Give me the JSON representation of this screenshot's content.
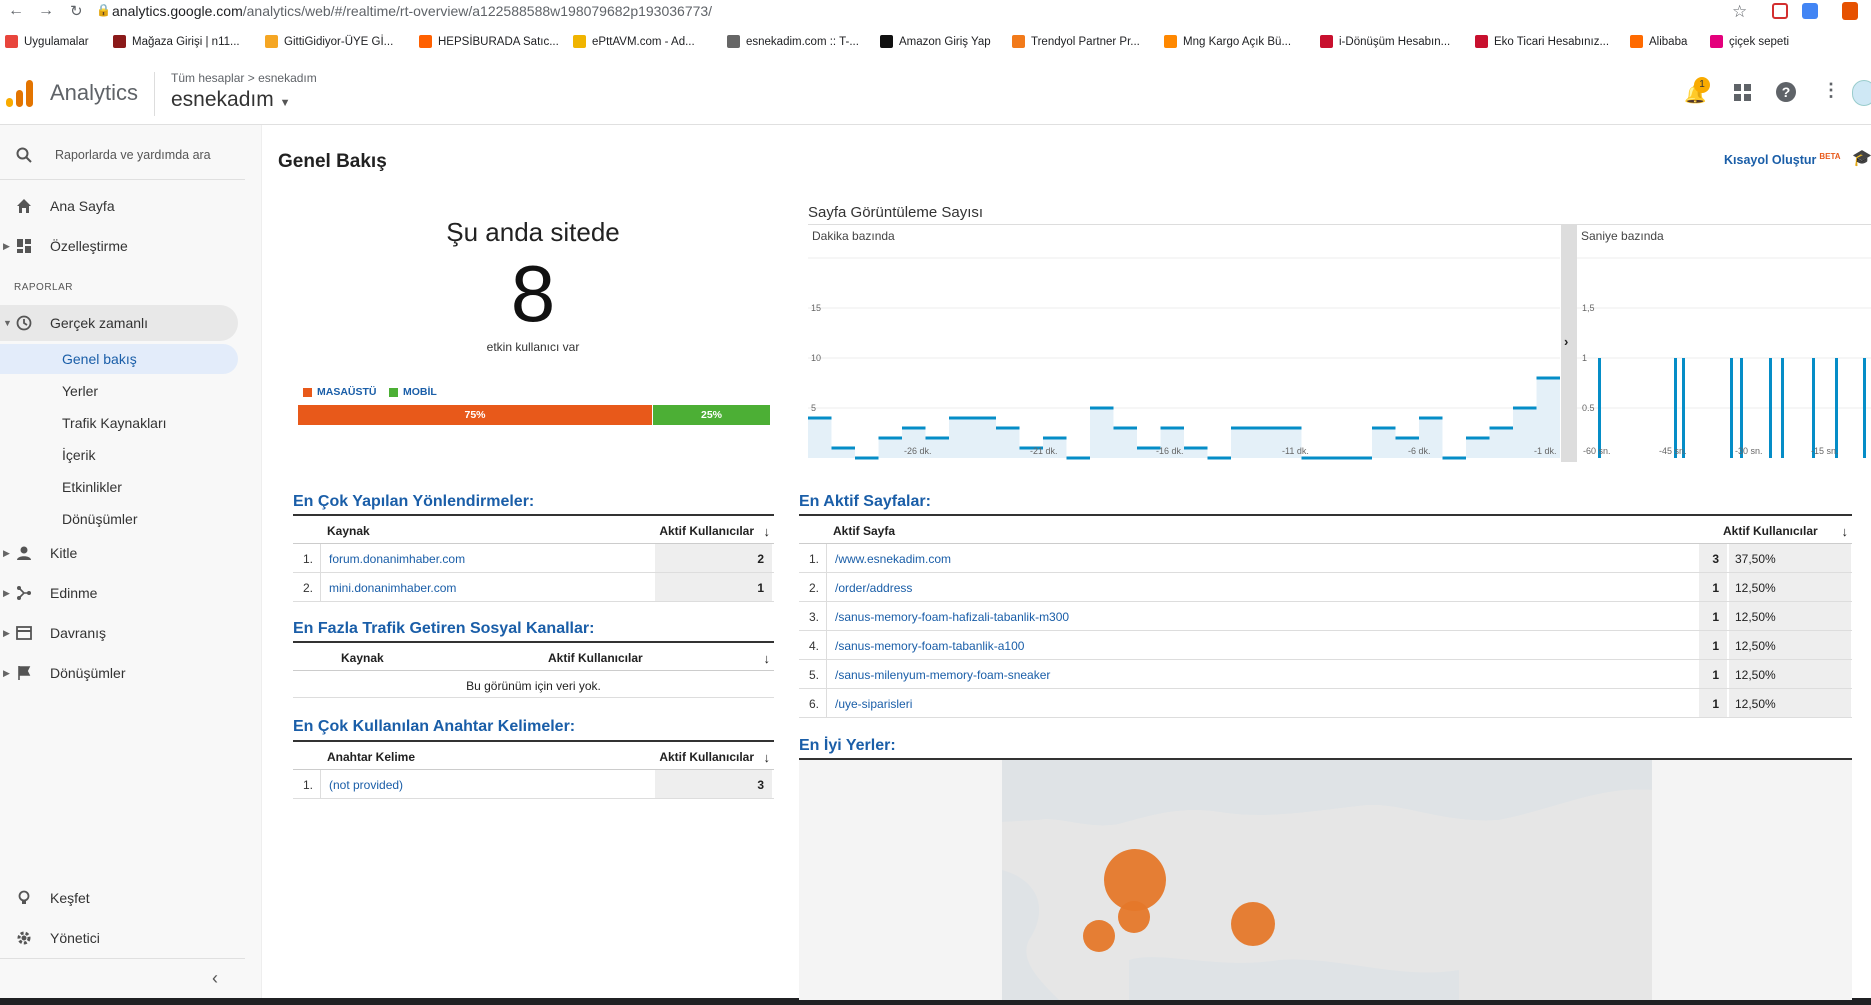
{
  "browser": {
    "url_host": "analytics.google.com",
    "url_path": "/analytics/web/#/realtime/rt-overview/a122588588w198079682p193036773/",
    "bookmarks": [
      {
        "label": "Uygulamalar",
        "icon": "apps-grid-icon",
        "color": "#e8453c"
      },
      {
        "label": "Mağaza Girişi | n11...",
        "icon": "n11-icon",
        "color": "#8b1a1a"
      },
      {
        "label": "GittiGidiyor-ÜYE Gİ...",
        "icon": "gittigidiyor-icon",
        "color": "#f5a623"
      },
      {
        "label": "HEPSİBURADA Satıc...",
        "icon": "hepsiburada-icon",
        "color": "#ff6000"
      },
      {
        "label": "ePttAVM.com - Ad...",
        "icon": "epttavm-icon",
        "color": "#f0b400"
      },
      {
        "label": "esnekadim.com :: T-...",
        "icon": "globe-icon",
        "color": "#666666"
      },
      {
        "label": "Amazon Giriş Yap",
        "icon": "amazon-icon",
        "color": "#111111"
      },
      {
        "label": "Trendyol Partner Pr...",
        "icon": "trendyol-icon",
        "color": "#f27a1a"
      },
      {
        "label": "Mng Kargo Açık Bü...",
        "icon": "mng-icon",
        "color": "#ff8800"
      },
      {
        "label": "i-Dönüşüm Hesabın...",
        "icon": "idonusum-icon",
        "color": "#c8102e"
      },
      {
        "label": "Eko Ticari Hesabınız...",
        "icon": "ekoticari-icon",
        "color": "#c8102e"
      },
      {
        "label": "Alibaba",
        "icon": "alibaba-icon",
        "color": "#ff6a00"
      },
      {
        "label": "çiçek sepeti",
        "icon": "ciceksepeti-icon",
        "color": "#e4007c"
      }
    ]
  },
  "header": {
    "app_name": "Analytics",
    "breadcrumb_all": "Tüm hesaplar",
    "breadcrumb_account": "esnekadım",
    "property": "esnekadım",
    "notification_count": "1"
  },
  "sidebar": {
    "search_placeholder": "Raporlarda ve yardımda ara",
    "home": "Ana Sayfa",
    "customize": "Özelleştirme",
    "reports_heading": "RAPORLAR",
    "realtime": "Gerçek zamanlı",
    "realtime_sub": [
      "Genel bakış",
      "Yerler",
      "Trafik Kaynakları",
      "İçerik",
      "Etkinlikler",
      "Dönüşümler"
    ],
    "audience": "Kitle",
    "acquisition": "Edinme",
    "behavior": "Davranış",
    "conversions": "Dönüşümler",
    "discover": "Keşfet",
    "admin": "Yönetici"
  },
  "page": {
    "title": "Genel Bakış",
    "shortcut": "Kısayol Oluştur",
    "beta": "BETA"
  },
  "active_users": {
    "heading": "Şu anda sitede",
    "count": "8",
    "caption": "etkin kullanıcı var",
    "desktop_label": "MASAÜSTÜ",
    "mobile_label": "MOBİL",
    "desktop_pct": "75%",
    "mobile_pct": "25%",
    "desktop_color": "#e8591a",
    "mobile_color": "#4caf35"
  },
  "chart_data": [
    {
      "type": "bar",
      "title": "Sayfa Görüntüleme Sayısı",
      "subtitle": "Dakika bazında",
      "x_labels": [
        "-26 dk.",
        "-21 dk.",
        "-16 dk.",
        "-11 dk.",
        "-6 dk.",
        "-1 dk."
      ],
      "y_ticks": [
        "5",
        "10",
        "15"
      ],
      "ylim": [
        0,
        20
      ],
      "values": [
        4,
        1,
        0,
        2,
        3,
        2,
        4,
        4,
        3,
        1,
        2,
        0,
        5,
        3,
        1,
        3,
        1,
        0,
        3,
        3,
        3,
        0,
        0,
        0,
        3,
        2,
        4,
        0,
        2,
        3,
        5,
        8
      ]
    },
    {
      "type": "bar",
      "subtitle": "Saniye bazında",
      "x_labels": [
        "-60 sn.",
        "-45 sn.",
        "-30 sn.",
        "-15 sn."
      ],
      "y_ticks": [
        "0.5",
        "1",
        "1,5"
      ],
      "ylim": [
        0,
        2
      ],
      "values": [
        1,
        1,
        1,
        1,
        1,
        1,
        1,
        1,
        1,
        1
      ]
    }
  ],
  "referrals": {
    "title": "En Çok Yapılan Yönlendirmeler:",
    "col1": "Kaynak",
    "col2": "Aktif Kullanıcılar",
    "rows": [
      {
        "n": "1.",
        "source": "forum.donanimhaber.com",
        "users": "2"
      },
      {
        "n": "2.",
        "source": "mini.donanimhaber.com",
        "users": "1"
      }
    ]
  },
  "social": {
    "title": "En Fazla Trafik Getiren Sosyal Kanallar:",
    "col1": "Kaynak",
    "col2": "Aktif Kullanıcılar",
    "empty": "Bu görünüm için veri yok."
  },
  "keywords": {
    "title": "En Çok Kullanılan Anahtar Kelimeler:",
    "col1": "Anahtar Kelime",
    "col2": "Aktif Kullanıcılar",
    "rows": [
      {
        "n": "1.",
        "keyword": "(not provided)",
        "users": "3"
      }
    ]
  },
  "active_pages": {
    "title": "En Aktif Sayfalar:",
    "col1": "Aktif Sayfa",
    "col2": "Aktif Kullanıcılar",
    "rows": [
      {
        "n": "1.",
        "page": "/www.esnekadim.com",
        "users": "3",
        "pct": "37,50%"
      },
      {
        "n": "2.",
        "page": "/order/address",
        "users": "1",
        "pct": "12,50%"
      },
      {
        "n": "3.",
        "page": "/sanus-memory-foam-hafizali-tabanlik-m300",
        "users": "1",
        "pct": "12,50%"
      },
      {
        "n": "4.",
        "page": "/sanus-memory-foam-tabanlik-a100",
        "users": "1",
        "pct": "12,50%"
      },
      {
        "n": "5.",
        "page": "/sanus-milenyum-memory-foam-sneaker",
        "users": "1",
        "pct": "12,50%"
      },
      {
        "n": "6.",
        "page": "/uye-siparisleri",
        "users": "1",
        "pct": "12,50%"
      }
    ]
  },
  "locations": {
    "title": "En İyi Yerler:",
    "bubble_color": "#e5782a"
  }
}
